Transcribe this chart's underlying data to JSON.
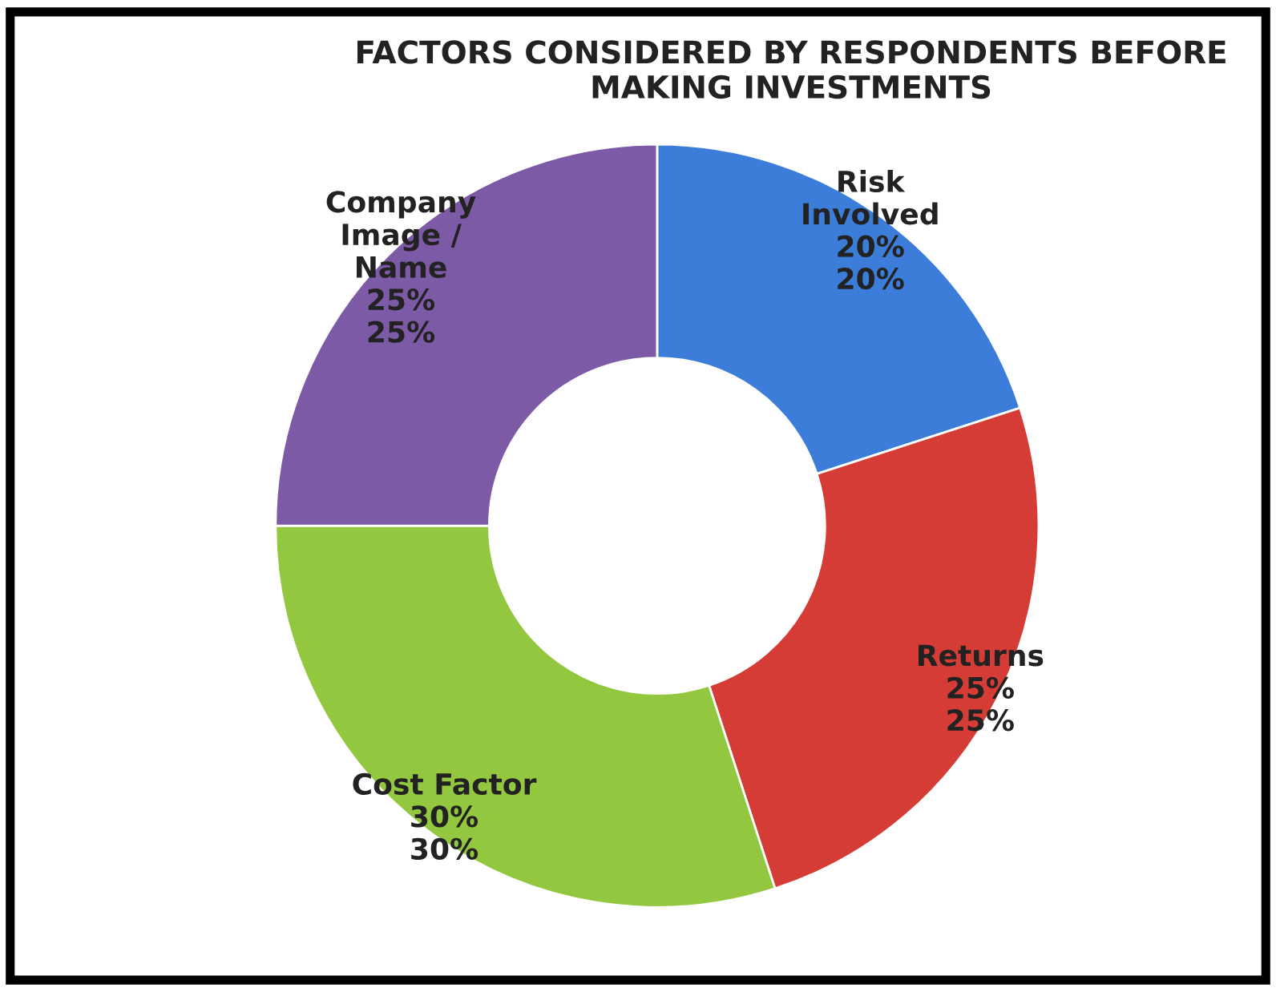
{
  "chart_data": {
    "type": "donut",
    "title": "FACTORS CONSIDERED BY RESPONDENTS BEFORE\nMAKING INVESTMENTS",
    "categories": [
      "Risk\nInvolved",
      "Returns",
      "Cost Factor",
      "Company\nImage /\nName"
    ],
    "values": [
      20,
      25,
      30,
      25
    ],
    "colors": [
      "#3c7dd9",
      "#d63c36",
      "#93c740",
      "#7d5aa6"
    ],
    "value_labels": [
      "20%\n20%",
      "25%\n25%",
      "30%\n30%",
      "25%\n25%"
    ],
    "legend": false
  }
}
